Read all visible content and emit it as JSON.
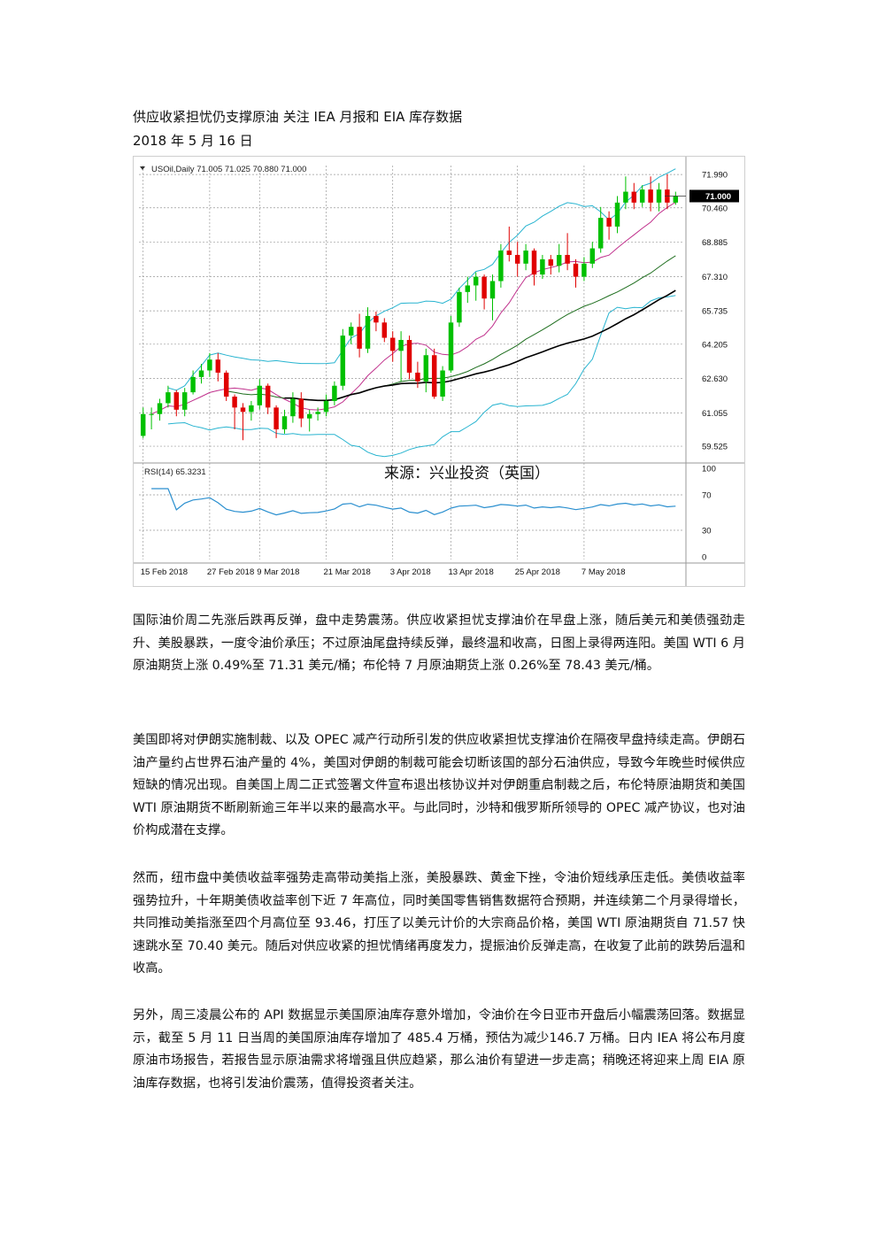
{
  "document": {
    "title": "供应收紧担忧仍支撑原油 关注 IEA 月报和 EIA 库存数据",
    "date": "2018 年 5 月 16 日",
    "paragraphs": [
      "国际油价周二先涨后跌再反弹，盘中走势震荡。供应收紧担忧支撑油价在早盘上涨，随后美元和美债强劲走升、美股暴跌，一度令油价承压；不过原油尾盘持续反弹，最终温和收高，日图上录得两连阳。美国 WTI 6 月原油期货上涨 0.49%至 71.31 美元/桶；布伦特 7 月原油期货上涨 0.26%至 78.43 美元/桶。",
      "美国即将对伊朗实施制裁、以及 OPEC 减产行动所引发的供应收紧担忧支撑油价在隔夜早盘持续走高。伊朗石油产量约占世界石油产量的 4%，美国对伊朗的制裁可能会切断该国的部分石油供应，导致今年晚些时候供应短缺的情况出现。自美国上周二正式签署文件宣布退出核协议并对伊朗重启制裁之后，布伦特原油期货和美国 WTI 原油期货不断刷新逾三年半以来的最高水平。与此同时，沙特和俄罗斯所领导的 OPEC 减产协议，也对油价构成潜在支撑。",
      "然而，纽市盘中美债收益率强势走高带动美指上涨，美股暴跌、黄金下挫，令油价短线承压走低。美债收益率强势拉升，十年期美债收益率创下近 7 年高位，同时美国零售销售数据符合预期，并连续第二个月录得增长，共同推动美指涨至四个月高位至 93.46，打压了以美元计价的大宗商品价格，美国 WTI 原油期货自 71.57 快速跳水至 70.40 美元。随后对供应收紧的担忧情绪再度发力，提振油价反弹走高，在收复了此前的跌势后温和收高。",
      "另外，周三凌晨公布的 API 数据显示美国原油库存意外增加，令油价在今日亚市开盘后小幅震荡回落。数据显示，截至 5 月 11 日当周的美国原油库存增加了 485.4 万桶，预估为减少146.7 万桶。日内 IEA 将公布月度原油市场报告，若报告显示原油需求将增强且供应趋紧，那么油价有望进一步走高；稍晚还将迎来上周 EIA 原油库存数据，也将引发油价震荡，值得投资者关注。"
    ]
  },
  "chart_data": {
    "type": "candlestick",
    "symbol_header": "USOil,Daily  71.005 71.025 70.880 71.000",
    "current_price_label": "71.000",
    "watermark": "来源：兴业投资（英国）",
    "y_ticks": [
      "71.990",
      "70.460",
      "68.885",
      "67.310",
      "65.735",
      "64.205",
      "62.630",
      "61.055",
      "59.525"
    ],
    "ylim": [
      59.0,
      72.4
    ],
    "x_ticks": [
      "15 Feb 2018",
      "27 Feb 2018",
      "9 Mar 2018",
      "21 Mar 2018",
      "3 Apr 2018",
      "13 Apr 2018",
      "25 Apr 2018",
      "7 May 2018"
    ],
    "x_tick_indices": [
      0,
      8,
      14,
      22,
      30,
      37,
      45,
      53
    ],
    "candles": [
      [
        60.0,
        61.3,
        59.9,
        61.0
      ],
      [
        61.0,
        61.3,
        60.3,
        61.0
      ],
      [
        61.0,
        61.7,
        60.7,
        61.5
      ],
      [
        61.5,
        62.3,
        61.3,
        62.0
      ],
      [
        62.0,
        62.1,
        60.9,
        61.2
      ],
      [
        61.2,
        62.2,
        60.9,
        62.0
      ],
      [
        62.0,
        63.0,
        61.9,
        62.7
      ],
      [
        62.7,
        63.3,
        62.4,
        63.0
      ],
      [
        63.0,
        63.8,
        62.7,
        63.5
      ],
      [
        63.5,
        63.8,
        62.5,
        62.9
      ],
      [
        62.9,
        63.0,
        61.6,
        61.8
      ],
      [
        61.8,
        61.9,
        60.3,
        61.3
      ],
      [
        61.3,
        61.5,
        59.8,
        61.1
      ],
      [
        61.1,
        61.6,
        60.7,
        61.4
      ],
      [
        61.4,
        62.6,
        61.2,
        62.3
      ],
      [
        62.3,
        62.4,
        61.0,
        61.3
      ],
      [
        61.3,
        61.4,
        59.9,
        60.3
      ],
      [
        60.3,
        61.2,
        60.1,
        60.9
      ],
      [
        60.9,
        62.0,
        60.6,
        61.7
      ],
      [
        61.7,
        62.0,
        60.4,
        60.8
      ],
      [
        60.8,
        61.2,
        60.2,
        61.0
      ],
      [
        61.0,
        61.3,
        60.7,
        61.1
      ],
      [
        61.1,
        61.9,
        60.9,
        61.6
      ],
      [
        61.6,
        62.5,
        61.4,
        62.3
      ],
      [
        62.3,
        64.9,
        62.1,
        64.6
      ],
      [
        64.6,
        65.2,
        64.2,
        65.0
      ],
      [
        65.0,
        65.6,
        63.6,
        64.0
      ],
      [
        64.0,
        65.9,
        63.8,
        65.5
      ],
      [
        65.5,
        65.7,
        64.8,
        65.2
      ],
      [
        65.2,
        65.4,
        64.3,
        64.5
      ],
      [
        64.5,
        64.8,
        63.4,
        63.9
      ],
      [
        63.9,
        64.8,
        62.5,
        64.4
      ],
      [
        64.4,
        64.6,
        62.6,
        62.9
      ],
      [
        62.9,
        63.4,
        62.2,
        62.5
      ],
      [
        62.5,
        64.0,
        62.0,
        63.7
      ],
      [
        63.7,
        64.0,
        61.7,
        61.8
      ],
      [
        61.8,
        63.2,
        61.6,
        63.0
      ],
      [
        63.0,
        65.5,
        62.9,
        65.2
      ],
      [
        65.2,
        66.8,
        65.0,
        66.6
      ],
      [
        66.6,
        67.3,
        66.1,
        66.9
      ],
      [
        66.9,
        67.5,
        66.2,
        67.3
      ],
      [
        67.3,
        67.4,
        65.8,
        66.3
      ],
      [
        66.3,
        67.4,
        65.3,
        67.1
      ],
      [
        67.1,
        68.8,
        66.8,
        68.5
      ],
      [
        68.5,
        69.6,
        68.0,
        68.3
      ],
      [
        68.3,
        68.9,
        67.3,
        67.9
      ],
      [
        67.9,
        68.8,
        67.6,
        68.5
      ],
      [
        68.5,
        68.6,
        66.9,
        67.4
      ],
      [
        67.4,
        68.3,
        67.2,
        68.1
      ],
      [
        68.1,
        68.3,
        67.4,
        67.8
      ],
      [
        67.8,
        68.8,
        67.5,
        68.3
      ],
      [
        68.3,
        69.3,
        67.6,
        67.9
      ],
      [
        67.9,
        68.1,
        66.8,
        67.3
      ],
      [
        67.3,
        68.2,
        67.1,
        67.9
      ],
      [
        67.9,
        68.9,
        67.7,
        68.6
      ],
      [
        68.6,
        70.5,
        68.4,
        70.0
      ],
      [
        70.0,
        70.3,
        69.0,
        69.6
      ],
      [
        69.6,
        71.0,
        69.3,
        70.7
      ],
      [
        70.7,
        71.9,
        70.4,
        71.2
      ],
      [
        71.2,
        71.6,
        70.4,
        70.7
      ],
      [
        70.7,
        71.5,
        70.5,
        71.3
      ],
      [
        71.3,
        71.9,
        70.3,
        70.7
      ],
      [
        70.7,
        71.6,
        70.3,
        71.3
      ],
      [
        71.3,
        72.0,
        70.4,
        70.7
      ],
      [
        70.7,
        71.2,
        70.6,
        71.0
      ]
    ],
    "rsi": {
      "label": "RSI(14) 65.3231",
      "ticks": [
        "100",
        "70",
        "30",
        "0"
      ],
      "ylim": [
        0,
        100
      ]
    },
    "colors": {
      "up": "#00c000",
      "down": "#e00000",
      "bollinger": "#28b4d0",
      "ma_fast": "#c0308c",
      "ma_mid": "#1e6e1e",
      "ma_slow": "#000000",
      "rsi": "#2a8fcf"
    }
  }
}
